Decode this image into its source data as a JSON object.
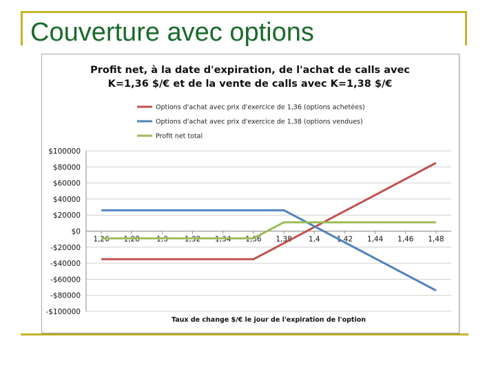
{
  "slide": {
    "title": "Couverture avec options"
  },
  "colors": {
    "accent_rule": "#c8b428",
    "title": "#1a6a2a"
  },
  "chart_data": {
    "type": "line",
    "title_lines": [
      "Profit net, à la date d'expiration, de l'achat de calls avec",
      "K=1,36 $/€ et de la vente de calls avec K=1,38 $/€"
    ],
    "xlabel": "Taux de change $/€ le jour de l'expiration de l'option",
    "ylabel": "",
    "x_tick_labels": [
      "1,26",
      "1,28",
      "1,3",
      "1,32",
      "1,34",
      "1,36",
      "1,38",
      "1,4",
      "1,42",
      "1,44",
      "1,46",
      "1,48"
    ],
    "x_tick_values": [
      1.26,
      1.28,
      1.3,
      1.32,
      1.34,
      1.36,
      1.38,
      1.4,
      1.42,
      1.44,
      1.46,
      1.48
    ],
    "y_tick_labels": [
      "$100000",
      "$80000",
      "$60000",
      "$40000",
      "$20000",
      "$0",
      "-$20000",
      "-$40000",
      "-$60000",
      "-$80000",
      "-$100000"
    ],
    "y_tick_values": [
      100000,
      80000,
      60000,
      40000,
      20000,
      0,
      -20000,
      -40000,
      -60000,
      -80000,
      -100000
    ],
    "xlim": [
      1.25,
      1.49
    ],
    "ylim": [
      -100000,
      100000
    ],
    "grid": "horizontal",
    "legend_position": "top",
    "series": [
      {
        "name": "Options d'achat avec prix d'exercice de 1,36 (options achetées)",
        "color": "#c0504d",
        "points": [
          [
            1.26,
            -35000
          ],
          [
            1.36,
            -35000
          ],
          [
            1.48,
            85000
          ]
        ]
      },
      {
        "name": "Options d'achat avec prix d'exercice de 1,38 (options vendues)",
        "color": "#4f81bd",
        "points": [
          [
            1.26,
            26000
          ],
          [
            1.38,
            26000
          ],
          [
            1.48,
            -74000
          ]
        ]
      },
      {
        "name": "Profit net total",
        "color": "#9bbb59",
        "points": [
          [
            1.26,
            -9000
          ],
          [
            1.36,
            -9000
          ],
          [
            1.38,
            11000
          ],
          [
            1.48,
            11000
          ]
        ]
      }
    ]
  }
}
